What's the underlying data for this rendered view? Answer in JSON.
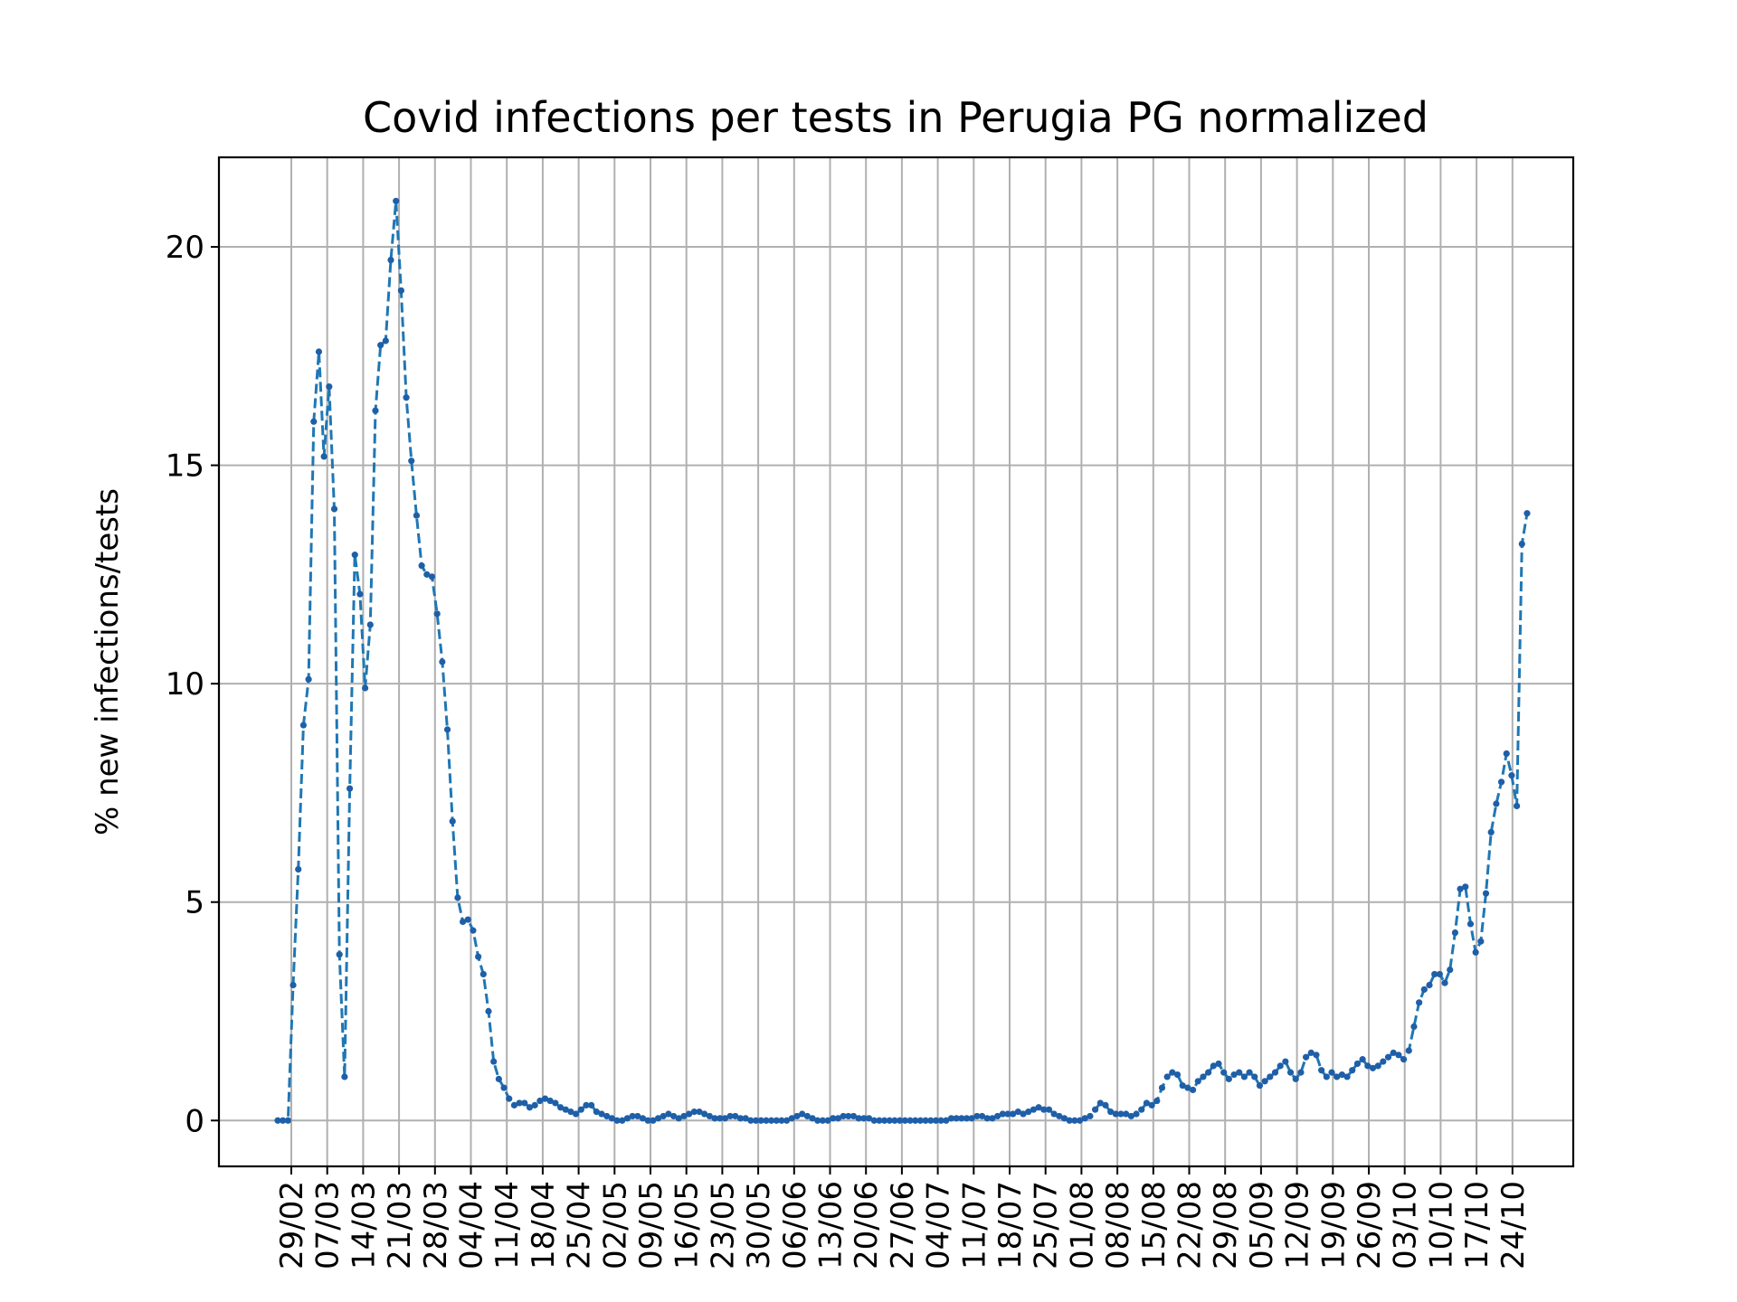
{
  "chart_data": {
    "type": "line",
    "title": "Covid infections per tests in Perugia PG normalized",
    "xlabel": "",
    "ylabel": "% new infections/tests",
    "ylim": [
      -1.05,
      22.05
    ],
    "yticks": [
      0,
      5,
      10,
      15,
      20
    ],
    "xticks": [
      "29/02",
      "07/03",
      "14/03",
      "21/03",
      "28/03",
      "04/04",
      "11/04",
      "18/04",
      "25/04",
      "02/05",
      "09/05",
      "16/05",
      "23/05",
      "30/05",
      "06/06",
      "13/06",
      "20/06",
      "27/06",
      "04/07",
      "11/07",
      "18/07",
      "25/07",
      "01/08",
      "08/08",
      "15/08",
      "22/08",
      "29/08",
      "05/09",
      "12/09",
      "19/09",
      "26/09",
      "03/10",
      "10/10",
      "17/10",
      "24/10"
    ],
    "grid": true,
    "line_color": "#1f77b4",
    "marker_color": "#1f5fa8",
    "series": [
      {
        "name": "",
        "values": [
          0,
          0,
          0,
          3.1,
          5.75,
          9.05,
          10.1,
          16.0,
          17.6,
          15.2,
          16.8,
          14.0,
          3.8,
          1.0,
          7.6,
          12.95,
          12.05,
          9.9,
          11.35,
          16.25,
          17.75,
          17.85,
          19.7,
          21.05,
          19.0,
          16.55,
          15.1,
          13.85,
          12.7,
          12.5,
          12.45,
          11.6,
          10.5,
          8.95,
          6.85,
          5.1,
          4.55,
          4.6,
          4.35,
          3.75,
          3.35,
          2.5,
          1.35,
          0.95,
          0.75,
          0.5,
          0.35,
          0.4,
          0.4,
          0.3,
          0.35,
          0.45,
          0.5,
          0.45,
          0.4,
          0.3,
          0.25,
          0.2,
          0.15,
          0.25,
          0.35,
          0.35,
          0.2,
          0.15,
          0.1,
          0.05,
          0.0,
          0.0,
          0.05,
          0.1,
          0.1,
          0.05,
          0.0,
          0.0,
          0.05,
          0.1,
          0.15,
          0.1,
          0.05,
          0.1,
          0.15,
          0.2,
          0.2,
          0.15,
          0.1,
          0.05,
          0.05,
          0.05,
          0.1,
          0.1,
          0.05,
          0.05,
          0.0,
          0.0,
          0.0,
          0.0,
          0.0,
          0.0,
          0.0,
          0.0,
          0.05,
          0.1,
          0.15,
          0.1,
          0.05,
          0.0,
          0.0,
          0.0,
          0.05,
          0.05,
          0.1,
          0.1,
          0.1,
          0.05,
          0.05,
          0.05,
          0.0,
          0.0,
          0.0,
          0.0,
          0.0,
          0.0,
          0.0,
          0.0,
          0.0,
          0.0,
          0.0,
          0.0,
          0.0,
          0.0,
          0.0,
          0.05,
          0.05,
          0.05,
          0.05,
          0.05,
          0.1,
          0.1,
          0.05,
          0.05,
          0.1,
          0.15,
          0.15,
          0.15,
          0.2,
          0.15,
          0.2,
          0.25,
          0.3,
          0.25,
          0.25,
          0.15,
          0.1,
          0.05,
          0.0,
          0.0,
          0.0,
          0.05,
          0.1,
          0.25,
          0.4,
          0.35,
          0.2,
          0.15,
          0.15,
          0.15,
          0.1,
          0.15,
          0.25,
          0.4,
          0.35,
          0.45,
          0.75,
          1.0,
          1.1,
          1.05,
          0.8,
          0.75,
          0.7,
          0.9,
          1.0,
          1.1,
          1.25,
          1.3,
          1.1,
          0.95,
          1.05,
          1.1,
          1.0,
          1.1,
          1.0,
          0.8,
          0.9,
          1.0,
          1.1,
          1.25,
          1.35,
          1.1,
          0.95,
          1.1,
          1.45,
          1.55,
          1.5,
          1.15,
          1.0,
          1.1,
          1.0,
          1.05,
          1.0,
          1.15,
          1.3,
          1.4,
          1.25,
          1.2,
          1.25,
          1.35,
          1.45,
          1.55,
          1.5,
          1.4,
          1.6,
          2.15,
          2.7,
          3.0,
          3.1,
          3.35,
          3.35,
          3.15,
          3.45,
          4.3,
          5.3,
          5.35,
          4.5,
          3.85,
          4.1,
          5.2,
          6.6,
          7.25,
          7.75,
          8.4,
          7.9,
          7.2,
          13.2,
          13.9
        ]
      }
    ]
  }
}
